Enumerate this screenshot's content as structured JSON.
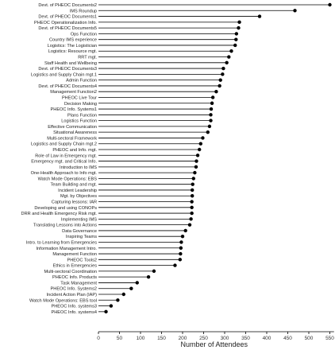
{
  "chart_data": {
    "type": "lollipop",
    "orientation": "horizontal",
    "xlabel": "Number of Attendees",
    "ylabel": "",
    "title": "",
    "xlim": [
      0,
      560
    ],
    "xticks": [
      0,
      50,
      100,
      150,
      200,
      250,
      300,
      350,
      400,
      450,
      500,
      550
    ],
    "grid": false,
    "categories": [
      "Devt. of PHEOC Documents2",
      "IMS Roundup",
      "Devt. of PHEOC Documents1",
      "PHEOC Operationalization Info.",
      "Devt. of PHEOC Documents5",
      "Ops Function",
      "Country IMS experience",
      "Logistics: The Logistician",
      "Logistics: Resource mgt.",
      "RRT mgt.",
      "Staff Health and Wellbeing",
      "Devt. of PHEOC Documents3",
      "Logistics and Supply Chain mgt.1",
      "Admin Function",
      "Devt. of PHEOC Documents4",
      "Management Function2",
      "PHEOC Live Tour",
      "Decision Making",
      "PHEOC Info. Systems1",
      "Plans Function",
      "Logistics Function",
      "Effective Communication",
      "Situational Awareness",
      "Multi-sectoral Framework",
      "Logistics and Supply Chain mgt.2",
      "PHEOC and Info. mgt.",
      "Role of Law in Emergency mgt.",
      "Emergency mgt. and Critical Info.",
      "Introduction to IMS",
      "One-Health Approach to Info mgt.",
      "Watch Mode Operations: EBS",
      "Team Building and mgt.",
      "Incident Leadership",
      "Mgt. by Objectives",
      "Capturing lessons: IAR",
      "Developing and using CONOPs",
      "DRR and Health Emergency Risk mgt.",
      "Implementing IMS",
      "Translating Lessons into Actions",
      "Data Governance",
      "Inspiring Teams",
      "Intro. to Learning from Emergencies",
      "Information Management Intro.",
      "Management Function",
      "PHEOC Tools2",
      "Ethics in Emergencies",
      "Multi-sectoral Coordination",
      "PHEOC Info. Products",
      "Task Management",
      "PHEOC Info. Systems2",
      "Incident Action Plan (IAP)",
      "Watch Mode Operations: EBS tool",
      "PHEOC Info. systems3",
      "PHEOC Info. systems4"
    ],
    "values": [
      550,
      467,
      383,
      335,
      333,
      328,
      327,
      325,
      316,
      310,
      305,
      297,
      295,
      290,
      288,
      280,
      272,
      270,
      268,
      267,
      267,
      264,
      260,
      248,
      243,
      240,
      236,
      233,
      232,
      229,
      226,
      224,
      223,
      223,
      222,
      222,
      222,
      220,
      217,
      207,
      200,
      197,
      196,
      195,
      194,
      182,
      132,
      119,
      92,
      78,
      60,
      46,
      30,
      18
    ]
  }
}
